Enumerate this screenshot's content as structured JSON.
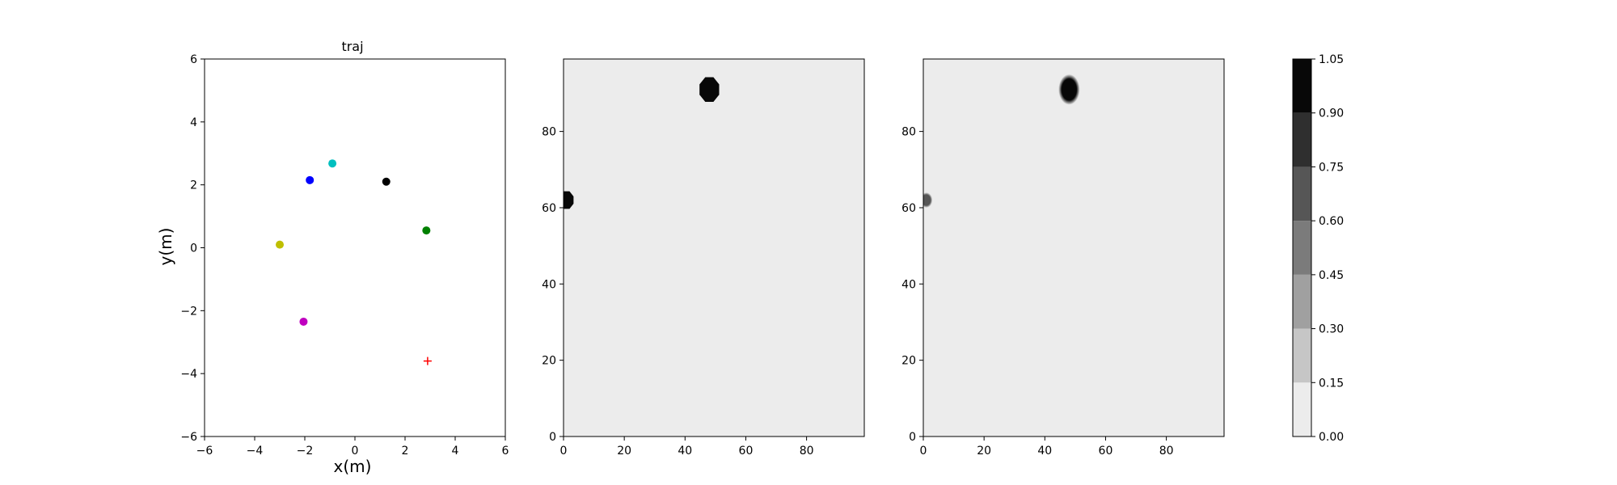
{
  "chart_data": [
    {
      "type": "scatter",
      "title": "traj",
      "xlabel": "x(m)",
      "ylabel": "y(m)",
      "xlim": [
        -6,
        6
      ],
      "ylim": [
        -6,
        6
      ],
      "xticks": [
        -6,
        -4,
        -2,
        0,
        2,
        4,
        6
      ],
      "yticks": [
        -6,
        -4,
        -2,
        0,
        2,
        4,
        6
      ],
      "grid": false,
      "points": [
        {
          "x": -1.8,
          "y": 2.15,
          "color": "#0000ff",
          "marker": "circle"
        },
        {
          "x": -0.9,
          "y": 2.68,
          "color": "#00bfbf",
          "marker": "circle"
        },
        {
          "x": 1.25,
          "y": 2.1,
          "color": "#000000",
          "marker": "circle"
        },
        {
          "x": 2.85,
          "y": 0.55,
          "color": "#008000",
          "marker": "circle"
        },
        {
          "x": -3.0,
          "y": 0.1,
          "color": "#bfbf00",
          "marker": "circle"
        },
        {
          "x": -2.05,
          "y": -2.35,
          "color": "#bf00bf",
          "marker": "circle"
        },
        {
          "x": 2.9,
          "y": -3.6,
          "color": "#ff0000",
          "marker": "plus"
        }
      ]
    },
    {
      "type": "heatmap",
      "title": "",
      "xlim": [
        0,
        99
      ],
      "ylim": [
        0,
        99
      ],
      "xticks": [
        0,
        20,
        40,
        60,
        80
      ],
      "yticks": [
        0,
        20,
        40,
        60,
        80
      ],
      "background_value": 0.05,
      "blobs": [
        {
          "cx": 48,
          "cy": 91,
          "rx": 3.5,
          "ry": 3.5,
          "value": 1.0,
          "shape": "octagon"
        },
        {
          "cx": 1,
          "cy": 62,
          "rx": 2.5,
          "ry": 2.5,
          "value": 1.0,
          "shape": "octagon"
        }
      ]
    },
    {
      "type": "heatmap",
      "title": "",
      "xlim": [
        0,
        99
      ],
      "ylim": [
        0,
        99
      ],
      "xticks": [
        0,
        20,
        40,
        60,
        80
      ],
      "yticks": [
        0,
        20,
        40,
        60,
        80
      ],
      "background_value": 0.05,
      "blobs": [
        {
          "cx": 48,
          "cy": 91,
          "rx": 3.5,
          "ry": 4.0,
          "value": 1.0,
          "shape": "soft"
        },
        {
          "cx": 1,
          "cy": 62,
          "rx": 2.0,
          "ry": 2.0,
          "value": 0.6,
          "shape": "soft"
        }
      ]
    }
  ],
  "colorbar": {
    "levels": [
      0.0,
      0.15,
      0.3,
      0.45,
      0.6,
      0.75,
      0.9,
      1.05
    ],
    "labels": [
      "0.00",
      "0.15",
      "0.30",
      "0.45",
      "0.60",
      "0.75",
      "0.90",
      "1.05"
    ],
    "colors": [
      "#ececec",
      "#c6c6c6",
      "#a0a0a0",
      "#7b7b7b",
      "#565656",
      "#2f2f2f",
      "#080808"
    ]
  }
}
